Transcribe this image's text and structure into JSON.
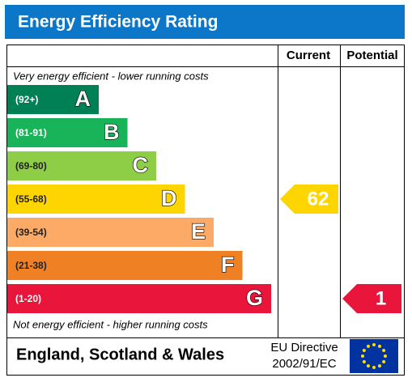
{
  "title": "Energy Efficiency Rating",
  "columns": [
    "Current",
    "Potential"
  ],
  "top_note": "Very energy efficient - lower running costs",
  "bottom_note": "Not energy efficient - higher running costs",
  "bands": [
    {
      "range": "(92+)",
      "letter": "A",
      "color": "#008054"
    },
    {
      "range": "(81-91)",
      "letter": "B",
      "color": "#19b459"
    },
    {
      "range": "(69-80)",
      "letter": "C",
      "color": "#8dce46"
    },
    {
      "range": "(55-68)",
      "letter": "D",
      "color": "#ffd500"
    },
    {
      "range": "(39-54)",
      "letter": "E",
      "color": "#fcaa65"
    },
    {
      "range": "(21-38)",
      "letter": "F",
      "color": "#ef8023"
    },
    {
      "range": "(1-20)",
      "letter": "G",
      "color": "#e9153b"
    }
  ],
  "current": 62,
  "potential": 1,
  "footer": {
    "region": "England, Scotland & Wales",
    "directive": [
      "EU Directive",
      "2002/91/EC"
    ]
  }
}
